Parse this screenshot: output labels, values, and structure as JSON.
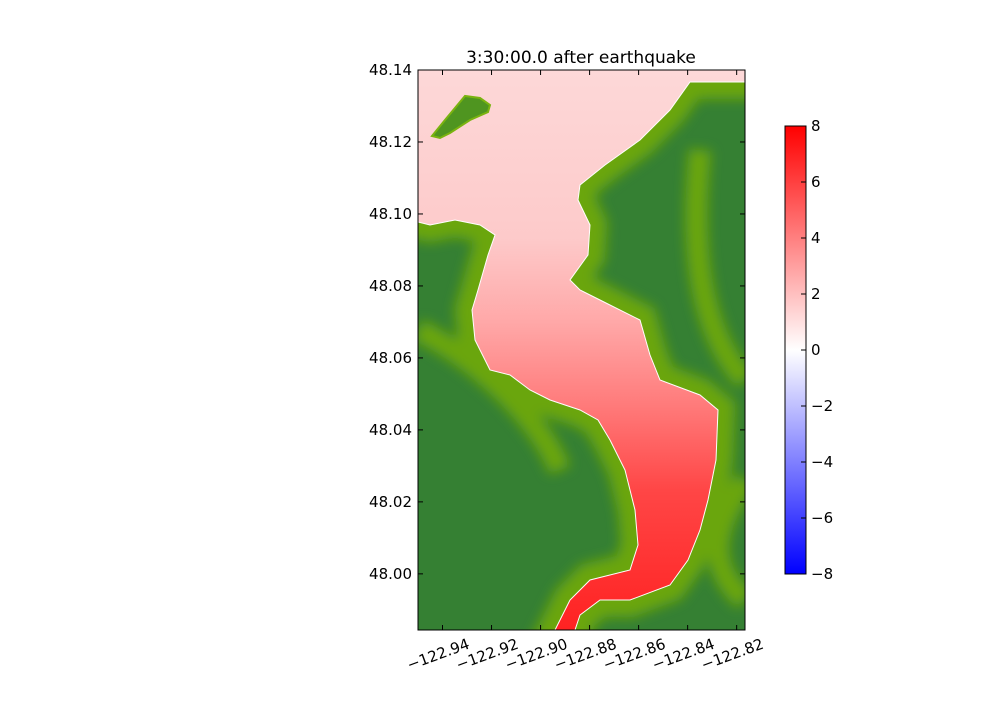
{
  "chart_data": {
    "type": "heatmap",
    "title": "3:30:00.0 after earthquake",
    "xlabel": "",
    "ylabel": "",
    "xlim": [
      -122.95,
      -122.8166
    ],
    "ylim": [
      47.9844,
      48.14
    ],
    "xticks": [
      -122.94,
      -122.92,
      -122.9,
      -122.88,
      -122.86,
      -122.84,
      -122.82
    ],
    "xtick_labels": [
      "−122.94",
      "−122.92",
      "−122.90",
      "−122.88",
      "−122.86",
      "−122.84",
      "−122.82"
    ],
    "yticks": [
      48.0,
      48.02,
      48.04,
      48.06,
      48.08,
      48.1,
      48.12,
      48.14
    ],
    "ytick_labels": [
      "48.00",
      "48.02",
      "48.04",
      "48.06",
      "48.08",
      "48.10",
      "48.12",
      "48.14"
    ],
    "colorbar": {
      "range": [
        -8,
        8
      ],
      "ticks": [
        -8,
        -6,
        -4,
        -2,
        0,
        2,
        4,
        6,
        8
      ],
      "tick_labels": [
        "−8",
        "−6",
        "−4",
        "−2",
        "0",
        "2",
        "4",
        "6",
        "8"
      ],
      "colors": {
        "low": "#0000ff",
        "mid": "#ffffff",
        "high": "#ff0000"
      }
    },
    "field_description_values": {
      "surface_elevation_north": 1,
      "surface_elevation_middle": 3,
      "surface_elevation_south": 7
    },
    "colors": {
      "land_dark": "#358033",
      "land_light": "#6aa60f"
    },
    "grid": false
  }
}
